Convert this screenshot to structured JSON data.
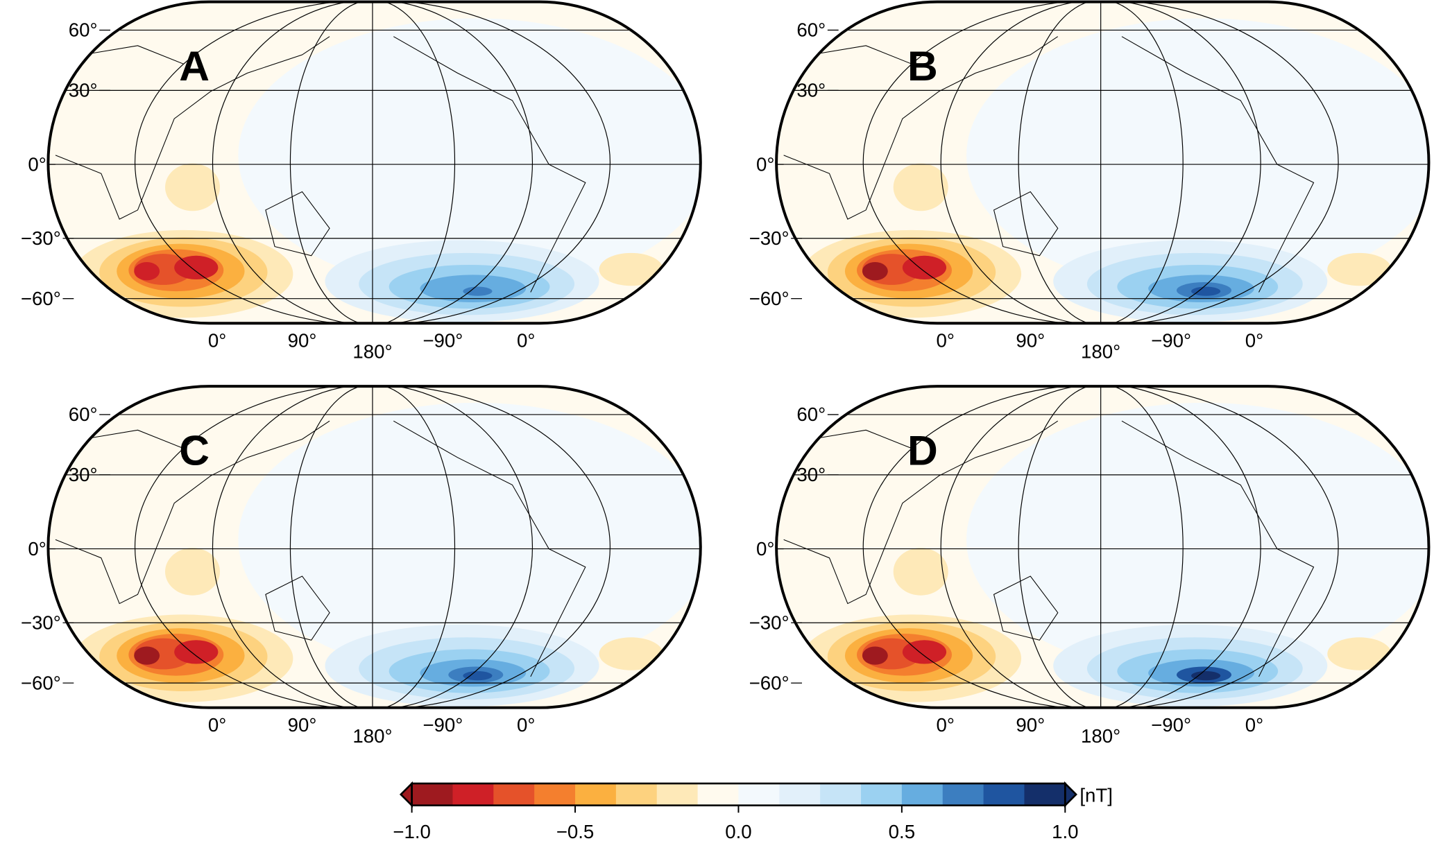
{
  "panels": [
    {
      "label": "A"
    },
    {
      "label": "B"
    },
    {
      "label": "C"
    },
    {
      "label": "D"
    }
  ],
  "lat_labels": [
    "60°",
    "30°",
    "0°",
    "−30°",
    "−60°"
  ],
  "lon_labels": [
    "0°",
    "90°",
    "180°",
    "−90°",
    "0°"
  ],
  "colorbar": {
    "unit": "[nT]",
    "range": [
      -1,
      1
    ],
    "ticks": [
      {
        "value": -1,
        "label": "−1.0"
      },
      {
        "value": -0.5,
        "label": "−0.5"
      },
      {
        "value": 0,
        "label": "0.0"
      },
      {
        "value": 0.5,
        "label": "0.5"
      },
      {
        "value": 1,
        "label": "1.0"
      }
    ],
    "colors": [
      "#9e1a1f",
      "#cf2027",
      "#e5522a",
      "#f47f2e",
      "#fbb040",
      "#fdd27f",
      "#fee9b8",
      "#fffaee",
      "#f3f9fd",
      "#e2f0fa",
      "#c6e4f7",
      "#9bd1f1",
      "#66ade0",
      "#3c7ec0",
      "#1f55a0",
      "#142f6a"
    ]
  }
}
